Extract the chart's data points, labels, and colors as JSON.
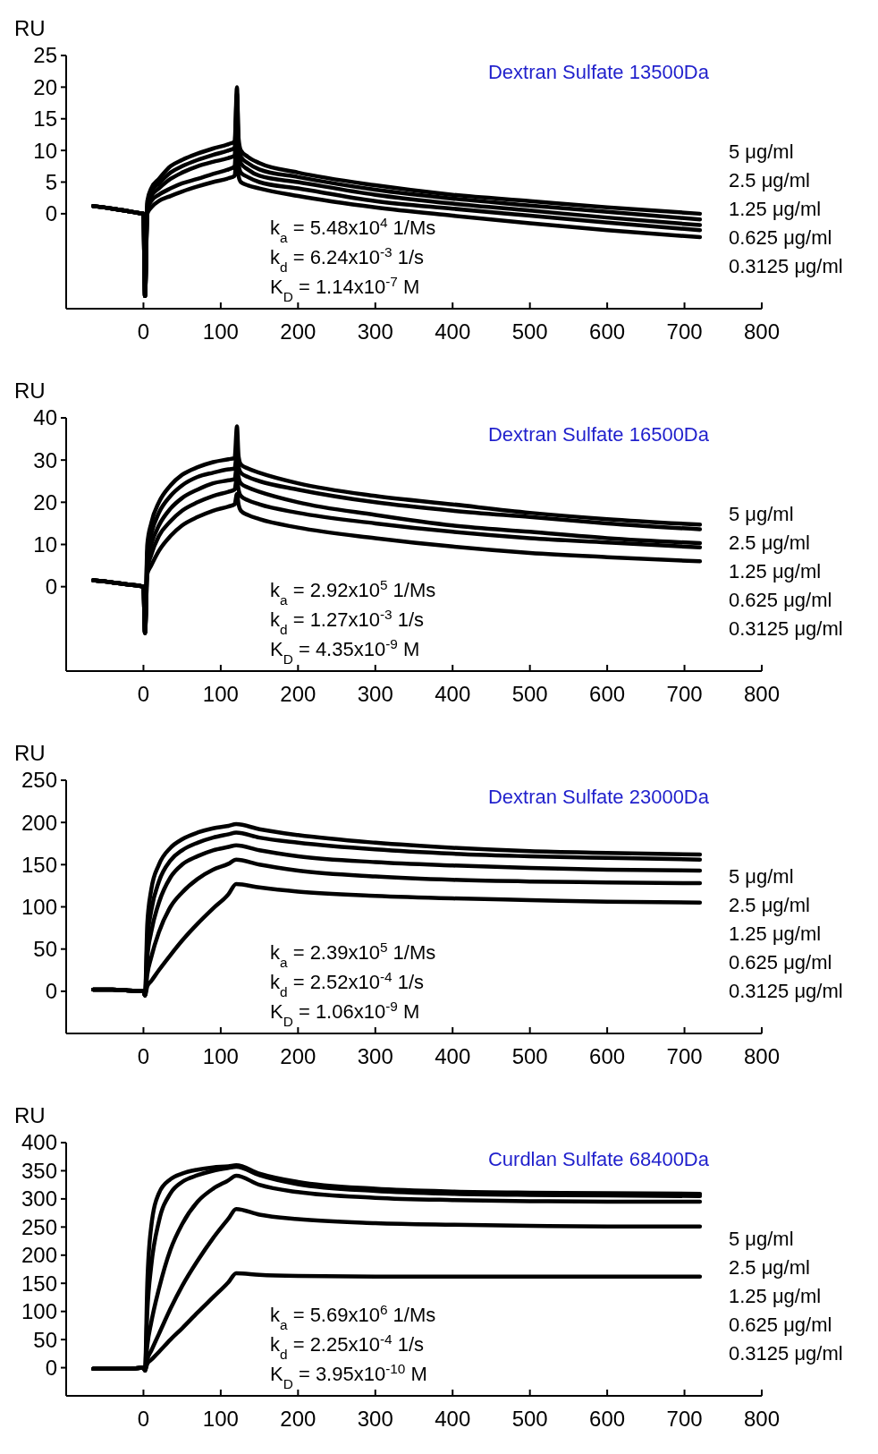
{
  "chart_data": [
    {
      "type": "line",
      "title": "Dextran Sulfate 13500Da",
      "ylabel": "RU",
      "xlim": [
        -100,
        800
      ],
      "xticks": [
        0,
        100,
        200,
        300,
        400,
        500,
        600,
        700,
        800
      ],
      "ylim": [
        -15,
        25
      ],
      "yticks": [
        0,
        5,
        10,
        15,
        20,
        25
      ],
      "annotations": [
        "k$_{a}$ = 5.48x10$^{4}$ 1/Ms",
        "k$_{d}$ = 6.24x10$^{-3}$ 1/s",
        "K$_{D}$ = 1.14x10$^{-7}$ M"
      ],
      "x": [
        -65,
        -40,
        -20,
        -5,
        0,
        2,
        5,
        10,
        20,
        35,
        50,
        70,
        90,
        110,
        118,
        121,
        123,
        126,
        135,
        150,
        200,
        300,
        400,
        500,
        600,
        720
      ],
      "series": [
        {
          "name": "5 μg/ml",
          "color": "#000000",
          "values": [
            1.2,
            0.8,
            0.4,
            0.1,
            0,
            -13,
            2,
            4,
            5.5,
            7.5,
            8.5,
            9.5,
            10.3,
            11,
            11.4,
            20,
            12,
            10,
            9,
            8,
            6.5,
            4.5,
            3,
            2,
            1,
            0
          ]
        },
        {
          "name": "2.5 μg/ml",
          "color": "#000000",
          "values": [
            1.2,
            0.8,
            0.4,
            0.1,
            0,
            -13,
            1.5,
            3.5,
            4.8,
            6.5,
            7.5,
            8.5,
            9.3,
            10,
            10.4,
            19,
            11,
            9,
            8,
            7,
            5.8,
            3.8,
            2.4,
            1.3,
            0.3,
            -0.9
          ]
        },
        {
          "name": "1.25 μg/ml",
          "color": "#000000",
          "values": [
            1.2,
            0.8,
            0.4,
            0.1,
            0,
            -13,
            1,
            2.8,
            4,
            5.5,
            6.5,
            7.5,
            8.2,
            8.8,
            9.2,
            17,
            9.5,
            8,
            7,
            6,
            5,
            3,
            1.6,
            0.5,
            -0.6,
            -1.8
          ]
        },
        {
          "name": "0.625 μg/ml",
          "color": "#000000",
          "values": [
            1.2,
            0.8,
            0.4,
            0.1,
            0,
            -13,
            0.5,
            2,
            3,
            4,
            4.8,
            5.5,
            6.3,
            7,
            7.5,
            14,
            8,
            6.5,
            5.8,
            5,
            4,
            2,
            0.8,
            -0.3,
            -1.4,
            -2.6
          ]
        },
        {
          "name": "0.3125 μg/ml",
          "color": "#000000",
          "values": [
            1.2,
            0.8,
            0.4,
            0.1,
            0,
            -13,
            0,
            1,
            2,
            2.8,
            3.5,
            4.3,
            5,
            5.6,
            6,
            10,
            6,
            5,
            4.5,
            4,
            2.8,
            1,
            -0.3,
            -1.5,
            -2.6,
            -3.7
          ]
        }
      ]
    },
    {
      "type": "line",
      "title": "Dextran Sulfate 16500Da",
      "ylabel": "RU",
      "xlim": [
        -100,
        800
      ],
      "xticks": [
        0,
        100,
        200,
        300,
        400,
        500,
        600,
        700,
        800
      ],
      "ylim": [
        -20,
        40
      ],
      "yticks": [
        0,
        10,
        20,
        30,
        40
      ],
      "annotations": [
        "k$_{a}$ = 2.92x10$^{5}$ 1/Ms",
        "k$_{d}$ = 1.27x10$^{-3}$ 1/s",
        "K$_{D}$ = 4.35x10$^{-9}$ M"
      ],
      "x": [
        -65,
        -40,
        -20,
        -5,
        0,
        2,
        5,
        10,
        20,
        35,
        50,
        70,
        90,
        110,
        118,
        121,
        123,
        126,
        135,
        150,
        200,
        300,
        400,
        500,
        600,
        720
      ],
      "series": [
        {
          "name": "5 μg/ml",
          "color": "#000000",
          "values": [
            1.5,
            1,
            0.5,
            0.2,
            0,
            -11,
            10,
            15,
            20,
            24,
            26.5,
            28.3,
            29.5,
            30.2,
            30.5,
            38,
            31,
            29,
            28,
            27,
            24.5,
            21.5,
            19.5,
            17.5,
            16,
            14.7
          ]
        },
        {
          "name": "2.5 μg/ml",
          "color": "#000000",
          "values": [
            1.5,
            1,
            0.5,
            0.2,
            0,
            -11,
            8,
            12.5,
            17.5,
            21.5,
            24,
            26,
            27,
            27.8,
            28,
            32,
            28.5,
            27,
            26,
            25,
            23,
            20,
            18,
            16.5,
            15,
            13.6
          ]
        },
        {
          "name": "1.25 μg/ml",
          "color": "#000000",
          "values": [
            1.5,
            1,
            0.5,
            0.2,
            0,
            -11,
            6,
            10,
            14.5,
            18.5,
            21,
            23,
            24.5,
            25.2,
            25.5,
            29,
            26,
            24.5,
            23.5,
            22.5,
            20,
            17,
            14.5,
            13,
            11.5,
            10.3
          ]
        },
        {
          "name": "0.625 μg/ml",
          "color": "#000000",
          "values": [
            1.5,
            1,
            0.5,
            0.2,
            0,
            -11,
            4,
            7.5,
            12,
            15.5,
            18,
            20,
            21.5,
            22.5,
            23,
            26,
            23,
            21.5,
            20.5,
            19.5,
            17.5,
            15,
            13,
            11.5,
            10.5,
            9.3
          ]
        },
        {
          "name": "0.3125 μg/ml",
          "color": "#000000",
          "values": [
            1.5,
            1,
            0.5,
            0.2,
            0,
            -11,
            3,
            5,
            8.5,
            12,
            14.5,
            16.5,
            18,
            19,
            19.5,
            22,
            19.5,
            18,
            17,
            16,
            14,
            11.5,
            9.5,
            8,
            7,
            6
          ]
        }
      ]
    },
    {
      "type": "line",
      "title": "Dextran Sulfate 23000Da",
      "ylabel": "RU",
      "xlim": [
        -100,
        800
      ],
      "xticks": [
        0,
        100,
        200,
        300,
        400,
        500,
        600,
        700,
        800
      ],
      "ylim": [
        -50,
        250
      ],
      "yticks": [
        0,
        50,
        100,
        150,
        200,
        250
      ],
      "annotations": [
        "k$_{a}$ = 2.39x10$^{5}$ 1/Ms",
        "k$_{d}$ = 2.52x10$^{-4}$ 1/s",
        "K$_{D}$ = 1.06x10$^{-9}$ M"
      ],
      "x": [
        -65,
        -40,
        -20,
        0,
        2,
        5,
        10,
        20,
        35,
        50,
        70,
        90,
        110,
        120,
        150,
        200,
        300,
        400,
        500,
        600,
        720
      ],
      "series": [
        {
          "name": "5 μg/ml",
          "color": "#000000",
          "values": [
            2,
            2,
            1,
            0,
            -5,
            80,
            120,
            150,
            170,
            180,
            188,
            193,
            196,
            198,
            192,
            185,
            176,
            170,
            166,
            164,
            162
          ]
        },
        {
          "name": "2.5 μg/ml",
          "color": "#000000",
          "values": [
            2,
            2,
            1,
            0,
            -5,
            60,
            95,
            130,
            155,
            167,
            176,
            182,
            186,
            188,
            182,
            176,
            168,
            163,
            160,
            158,
            156
          ]
        },
        {
          "name": "1.25 μg/ml",
          "color": "#000000",
          "values": [
            2,
            2,
            1,
            0,
            -5,
            40,
            70,
            105,
            135,
            150,
            160,
            167,
            171,
            173,
            167,
            160,
            153,
            149,
            146,
            144,
            143
          ]
        },
        {
          "name": "0.625 μg/ml",
          "color": "#000000",
          "values": [
            2,
            2,
            1,
            0,
            -5,
            20,
            40,
            70,
            100,
            117,
            133,
            144,
            151,
            156,
            150,
            143,
            136,
            132,
            130,
            129,
            128
          ]
        },
        {
          "name": "0.3125 μg/ml",
          "color": "#000000",
          "values": [
            2,
            2,
            1,
            0,
            -5,
            6,
            12,
            25,
            43,
            60,
            80,
            98,
            115,
            127,
            123,
            118,
            113,
            110,
            108,
            106,
            105
          ]
        }
      ]
    },
    {
      "type": "line",
      "title": "Curdlan Sulfate 68400Da",
      "ylabel": "RU",
      "xlim": [
        -100,
        800
      ],
      "xticks": [
        0,
        100,
        200,
        300,
        400,
        500,
        600,
        700,
        800
      ],
      "ylim": [
        -50,
        400
      ],
      "yticks": [
        0,
        50,
        100,
        150,
        200,
        250,
        300,
        350,
        400
      ],
      "annotations": [
        "k$_{a}$ = 5.69x10$^{6}$ 1/Ms",
        "k$_{d}$ = 2.25x10$^{-4}$ 1/s",
        "K$_{D}$ = 3.95x10$^{-10}$ M"
      ],
      "x": [
        -65,
        -40,
        -20,
        0,
        2,
        5,
        10,
        20,
        35,
        50,
        70,
        90,
        110,
        120,
        150,
        200,
        300,
        400,
        500,
        600,
        720
      ],
      "series": [
        {
          "name": "5 μg/ml",
          "color": "#000000",
          "values": [
            -2,
            -2,
            -2,
            0,
            -5,
            150,
            250,
            310,
            335,
            345,
            352,
            356,
            358,
            360,
            345,
            330,
            318,
            313,
            311,
            310,
            309
          ]
        },
        {
          "name": "2.5 μg/ml",
          "color": "#000000",
          "values": [
            -2,
            -2,
            -2,
            0,
            -5,
            100,
            180,
            260,
            310,
            330,
            342,
            350,
            355,
            357,
            342,
            326,
            314,
            309,
            307,
            306,
            305
          ]
        },
        {
          "name": "1.25 μg/ml",
          "color": "#000000",
          "values": [
            -2,
            -2,
            -2,
            0,
            -5,
            40,
            80,
            140,
            210,
            255,
            295,
            318,
            333,
            341,
            325,
            312,
            302,
            298,
            296,
            295,
            295
          ]
        },
        {
          "name": "0.625 μg/ml",
          "color": "#000000",
          "values": [
            -2,
            -2,
            -2,
            0,
            -5,
            15,
            30,
            60,
            105,
            145,
            190,
            230,
            265,
            282,
            272,
            264,
            257,
            254,
            252,
            251,
            251
          ]
        },
        {
          "name": "0.3125 μg/ml",
          "color": "#000000",
          "values": [
            -2,
            -2,
            -2,
            0,
            -5,
            7,
            14,
            28,
            50,
            70,
            98,
            125,
            152,
            168,
            165,
            163,
            162,
            162,
            162,
            162,
            162
          ]
        }
      ]
    }
  ]
}
